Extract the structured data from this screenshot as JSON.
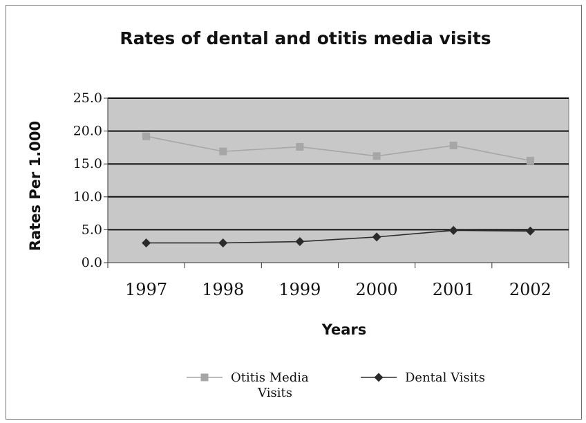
{
  "chart_data": {
    "type": "line",
    "title": "Rates of dental and otitis media visits",
    "xlabel": "Years",
    "ylabel": "Rates Per 1.000",
    "categories": [
      "1997",
      "1998",
      "1999",
      "2000",
      "2001",
      "2002"
    ],
    "y_ticks": [
      "0.0",
      "5.0",
      "10.0",
      "15.0",
      "20.0",
      "25.0"
    ],
    "ylim": [
      0,
      25
    ],
    "grid": true,
    "legend_position": "bottom",
    "series": [
      {
        "name": "Otitis Media Visits",
        "name_lines": [
          "Otitis Media",
          "Visits"
        ],
        "values": [
          19.2,
          16.9,
          17.6,
          16.2,
          17.8,
          15.5
        ],
        "color": "#a6a6a6",
        "marker": "square"
      },
      {
        "name": "Dental Visits",
        "name_lines": [
          "Dental Visits"
        ],
        "values": [
          3.0,
          3.0,
          3.2,
          3.9,
          4.9,
          4.8
        ],
        "color": "#2b2b2b",
        "marker": "diamond"
      }
    ],
    "plot_background": "#c8c8c8",
    "gridline_color": "#111111"
  }
}
